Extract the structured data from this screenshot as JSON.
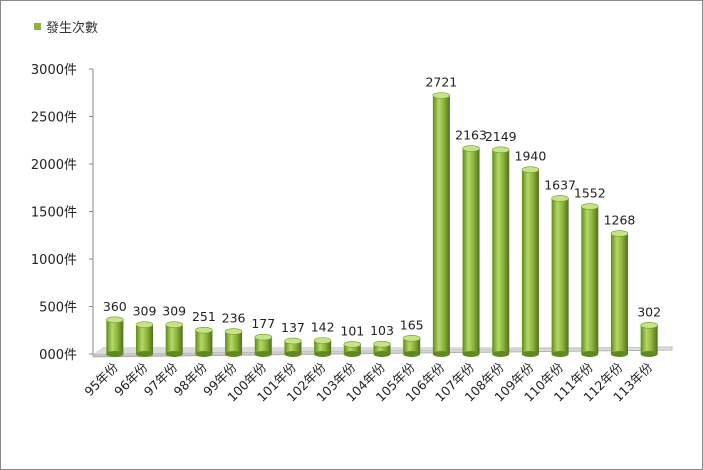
{
  "chart_data": {
    "type": "bar",
    "title": "",
    "xlabel": "",
    "ylabel": "",
    "ylim": [
      0,
      3000
    ],
    "grid": false,
    "legend_position": "top-left",
    "categories": [
      "95年份",
      "96年份",
      "97年份",
      "98年份",
      "99年份",
      "100年份",
      "101年份",
      "102年份",
      "103年份",
      "104年份",
      "105年份",
      "106年份",
      "107年份",
      "108年份",
      "109年份",
      "110年份",
      "111年份",
      "112年份",
      "113年份"
    ],
    "series": [
      {
        "name": "發生次數",
        "values": [
          360,
          309,
          309,
          251,
          236,
          177,
          137,
          142,
          101,
          103,
          165,
          2721,
          2163,
          2149,
          1940,
          1637,
          1552,
          1268,
          302
        ]
      }
    ],
    "y_ticks": [
      0,
      500,
      1000,
      1500,
      2000,
      2500,
      3000
    ],
    "y_tick_labels": [
      "000件",
      "500件",
      "1000件",
      "1500件",
      "2000件",
      "2500件",
      "3000件"
    ],
    "bar_color": "#8db33a"
  }
}
